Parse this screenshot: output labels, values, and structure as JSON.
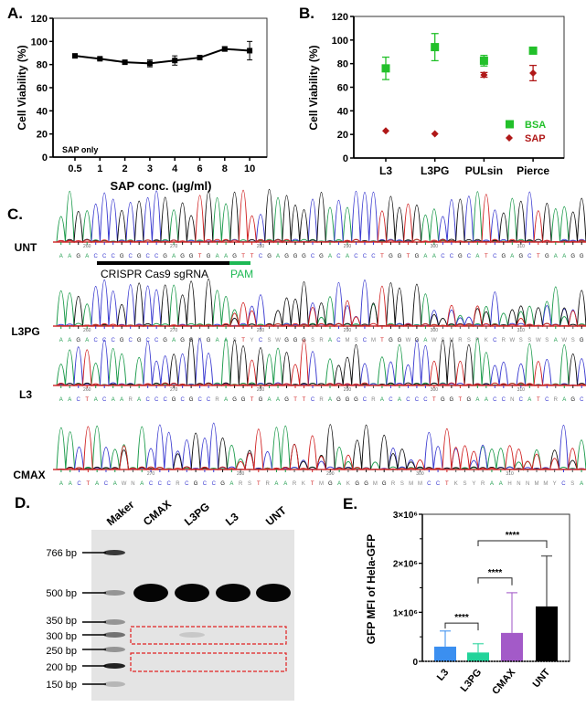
{
  "panel_labels": {
    "a": "A.",
    "b": "B.",
    "c": "C.",
    "d": "D.",
    "e": "E."
  },
  "chart_data": [
    {
      "type": "line",
      "panel": "A",
      "xlabel": "SAP conc. (μg/ml)",
      "ylabel": "Cell Viability (%)",
      "annotation": "SAP only",
      "categories": [
        "0.5",
        "1",
        "2",
        "3",
        "4",
        "6",
        "8",
        "10"
      ],
      "values": [
        87.5,
        85,
        82,
        81,
        83.5,
        86,
        93.5,
        92
      ],
      "errors": [
        1,
        1,
        1.5,
        3,
        4,
        1,
        2,
        8
      ],
      "ylim": [
        0,
        120
      ],
      "yticks": [
        "0",
        "20",
        "40",
        "60",
        "80",
        "100",
        "120"
      ],
      "color": "#000000"
    },
    {
      "type": "scatter",
      "panel": "B",
      "ylabel": "Cell Viability (%)",
      "categories": [
        "L3",
        "L3PG",
        "PULsin",
        "Pierce"
      ],
      "ylim": [
        0,
        120
      ],
      "yticks": [
        "0",
        "20",
        "40",
        "60",
        "80",
        "100",
        "120"
      ],
      "legend_position": "bottom-right",
      "series": [
        {
          "name": "BSA",
          "color": "#22c02a",
          "marker": "square",
          "values": [
            76,
            94,
            82.5,
            91
          ],
          "errors": [
            9.5,
            11.5,
            4.5,
            2
          ]
        },
        {
          "name": "SAP",
          "color": "#b01818",
          "marker": "diamond",
          "values": [
            23,
            20.5,
            70.5,
            72
          ],
          "errors": [
            0,
            0,
            2,
            6.5
          ]
        }
      ]
    },
    {
      "type": "bar",
      "panel": "E",
      "ylabel": "GFP MFI of  Hela-GFP",
      "categories": [
        "L3",
        "L3PG",
        "CMAX",
        "UNT"
      ],
      "values": [
        300000,
        180000,
        580000,
        1120000
      ],
      "errors": [
        620000,
        360000,
        1400000,
        2150000
      ],
      "colors": [
        "#3b8ff0",
        "#22d39a",
        "#a35ac8",
        "#000000"
      ],
      "ylim": [
        0,
        3000000
      ],
      "yticks": [
        "0",
        "1×10⁶",
        "2×10⁶",
        "3×10⁶"
      ],
      "significance": [
        {
          "from": "L3",
          "to": "L3PG",
          "label": "****",
          "level": 780000
        },
        {
          "from": "L3PG",
          "to": "CMAX",
          "label": "****",
          "level": 1700000
        },
        {
          "from": "L3PG",
          "to": "UNT",
          "label": "****",
          "level": 2460000
        }
      ]
    }
  ],
  "sequencing": {
    "base_colors": {
      "A": "#1a9a4a",
      "C": "#3a3ad0",
      "G": "#111111",
      "T": "#d02020"
    },
    "tracks": [
      {
        "label": "UNT",
        "positions": [
          "260",
          "270",
          "280",
          "290",
          "300",
          "310"
        ],
        "sequence": "AAGACCCGCGCCGAGGTGAAGTTCGAGGGCGACACCCTGGTGAACCGCATCGAGCTGAAGG"
      },
      {
        "label": "L3PG",
        "positions": [
          "260",
          "270",
          "280",
          "290",
          "300",
          "310"
        ],
        "sequence": "AAGACCCGCGCCGAGGKGAASTYCSWGGGSRACMSCMTGGWGAWSMRSRKCRWSSWSAWSG"
      },
      {
        "label": "L3",
        "positions": [
          "260",
          "270",
          "280",
          "290",
          "300",
          "310"
        ],
        "sequence": "AACTACAARACCCGCGCCRAGGTGAAGTTCRAGGGCRACACCCTGGTGAACCNCATCRAGC"
      },
      {
        "label": "CMAX",
        "positions": [
          "270",
          "280",
          "290",
          "300",
          "310"
        ],
        "sequence": "AACTACAWNACCCRCGCCGARSTRAARKTMGAKGGMGRSMMCCTKSYRAAHNNMMYCSA"
      }
    ],
    "sgrna_label": "CRISPR Cas9 sgRNA",
    "pam_label": "PAM",
    "pam_color": "#1db954"
  },
  "gel": {
    "lanes": [
      "Maker",
      "CMAX",
      "L3PG",
      "L3",
      "UNT"
    ],
    "ladder": [
      "766 bp",
      "500 bp",
      "350 bp",
      "300 bp",
      "250 bp",
      "200 bp",
      "150 bp"
    ],
    "highlight_color": "#e02020"
  }
}
